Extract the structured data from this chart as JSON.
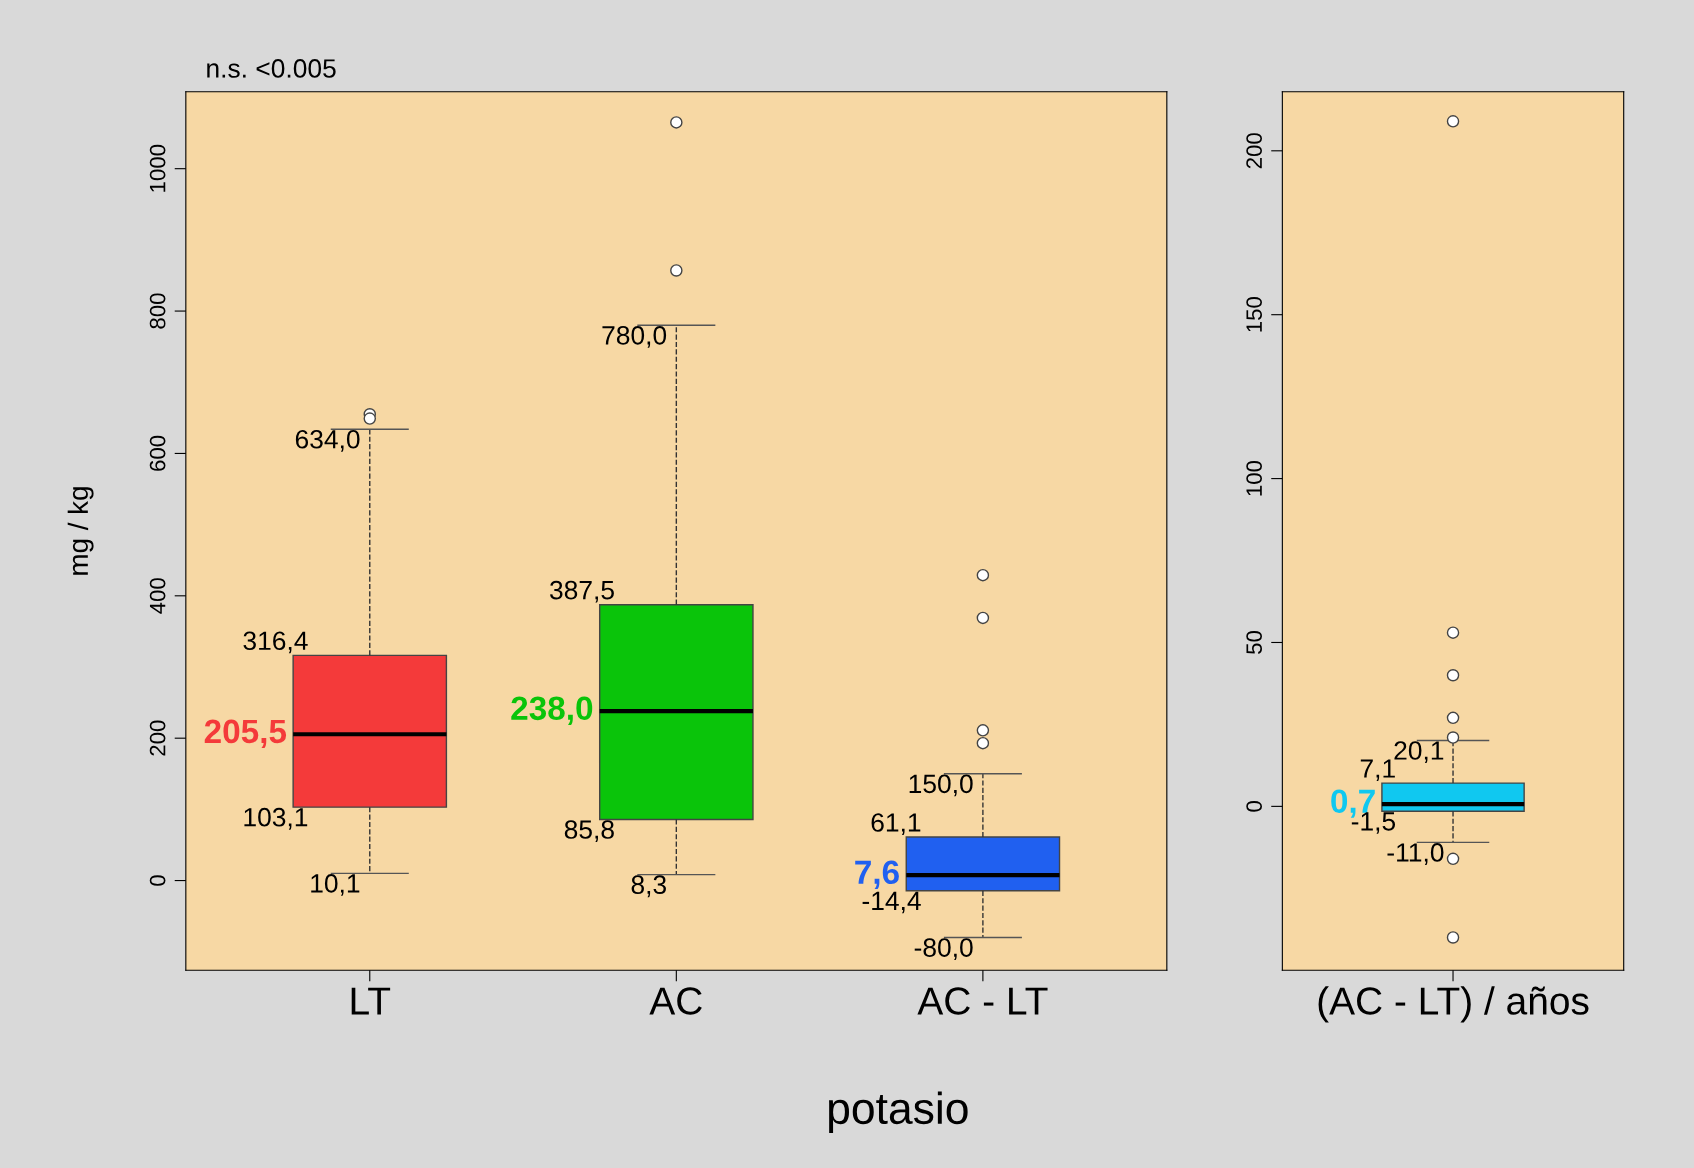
{
  "chart_data": [
    {
      "type": "box",
      "categories": [
        "LT",
        "AC",
        "AC - LT"
      ],
      "xlabel": "potasio",
      "ylabel": "mg / kg",
      "annotations": [
        "n.s. <0.005"
      ],
      "colors": [
        "#f43a3a",
        "#0ac40a",
        "#2060f0"
      ],
      "value_labels": [
        [
          "10,1",
          "103,1",
          "205,5",
          "316,4",
          "634,0"
        ],
        [
          "8,3",
          "85,8",
          "238,0",
          "387,5",
          "780,0"
        ],
        [
          "-80,0",
          "-14,4",
          "7,6",
          "61,1",
          "150,0"
        ]
      ],
      "ylim": [
        -126,
        1108
      ],
      "yticks": [
        0,
        200,
        400,
        600,
        800,
        1000
      ],
      "grid": false,
      "boxes": [
        {
          "low": 10.1,
          "q1": 103.1,
          "median": 205.5,
          "q3": 316.4,
          "high": 634.0,
          "outliers": [
            655,
            649
          ]
        },
        {
          "low": 8.3,
          "q1": 85.8,
          "median": 238.0,
          "q3": 387.5,
          "high": 780.0,
          "outliers": [
            1065,
            857
          ]
        },
        {
          "low": -80.0,
          "q1": -14.4,
          "median": 7.6,
          "q3": 61.1,
          "high": 150.0,
          "outliers": [
            429,
            369,
            211,
            193
          ]
        }
      ]
    },
    {
      "type": "box",
      "categories": [
        "(AC - LT) / años"
      ],
      "colors": [
        "#10c8f0"
      ],
      "value_labels": [
        [
          "-11,0",
          "-1,5",
          "0,7",
          "7,1",
          "20,1"
        ]
      ],
      "ylim": [
        -50,
        218
      ],
      "yticks": [
        0,
        50,
        100,
        150,
        200
      ],
      "grid": false,
      "boxes": [
        {
          "low": -11.0,
          "q1": -1.5,
          "median": 0.7,
          "q3": 7.1,
          "high": 20.1,
          "outliers": [
            209,
            53,
            40,
            27,
            21,
            -16,
            -40
          ]
        }
      ]
    }
  ]
}
